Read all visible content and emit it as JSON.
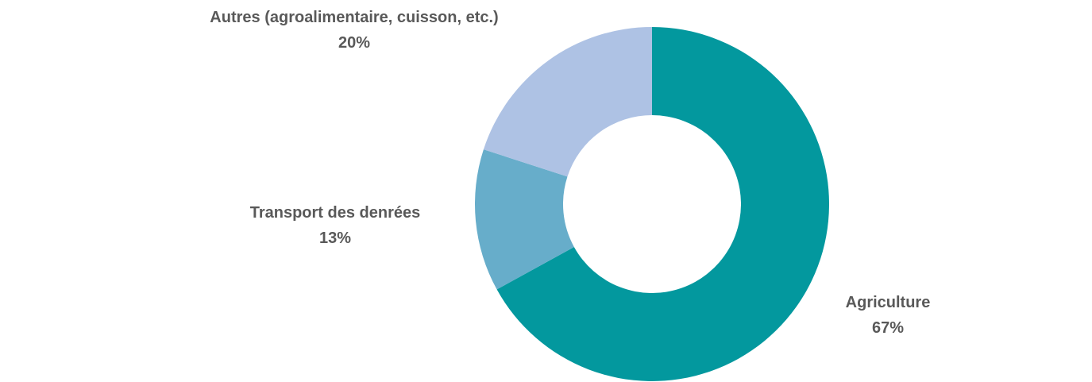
{
  "chart_data": {
    "type": "pie",
    "donut": true,
    "title": "",
    "categories": [
      "Agriculture",
      "Transport des denrées",
      "Autres (agroalimentaire, cuisson, etc.)"
    ],
    "values": [
      67,
      13,
      20
    ],
    "value_labels": [
      "67%",
      "13%",
      "20%"
    ],
    "colors": [
      "#03989e",
      "#67adca",
      "#aec2e4"
    ],
    "start_angle_deg": 0,
    "direction": "clockwise",
    "legend": "none",
    "data_labels": "outside"
  }
}
